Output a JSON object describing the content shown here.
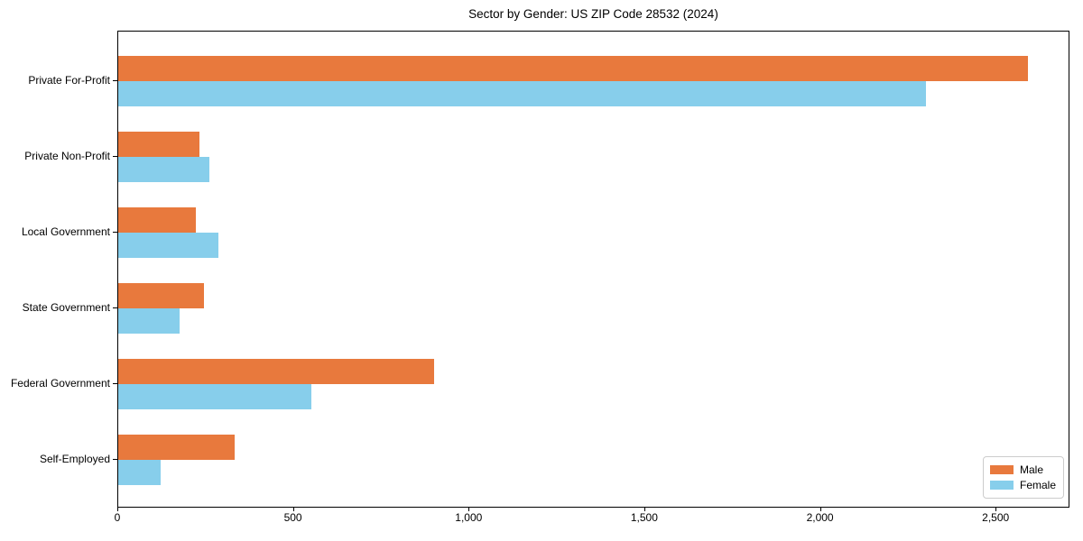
{
  "chart_data": {
    "type": "bar",
    "orientation": "horizontal",
    "title": "Sector by Gender: US ZIP Code 28532 (2024)",
    "categories": [
      "Private For-Profit",
      "Private Non-Profit",
      "Local Government",
      "State Government",
      "Federal Government",
      "Self-Employed"
    ],
    "series": [
      {
        "name": "Male",
        "color": "#e8793d",
        "values": [
          2590,
          230,
          220,
          245,
          900,
          330
        ]
      },
      {
        "name": "Female",
        "color": "#87ceeb",
        "values": [
          2300,
          260,
          285,
          175,
          550,
          120
        ]
      }
    ],
    "xlabel": "",
    "ylabel": "",
    "xlim": [
      0,
      2710
    ],
    "xticks": {
      "values": [
        0,
        500,
        1000,
        1500,
        2000,
        2500
      ],
      "labels": [
        "0",
        "500",
        "1,000",
        "1,500",
        "2,000",
        "2,500"
      ]
    },
    "grid": false,
    "legend": {
      "position": "lower right"
    }
  }
}
